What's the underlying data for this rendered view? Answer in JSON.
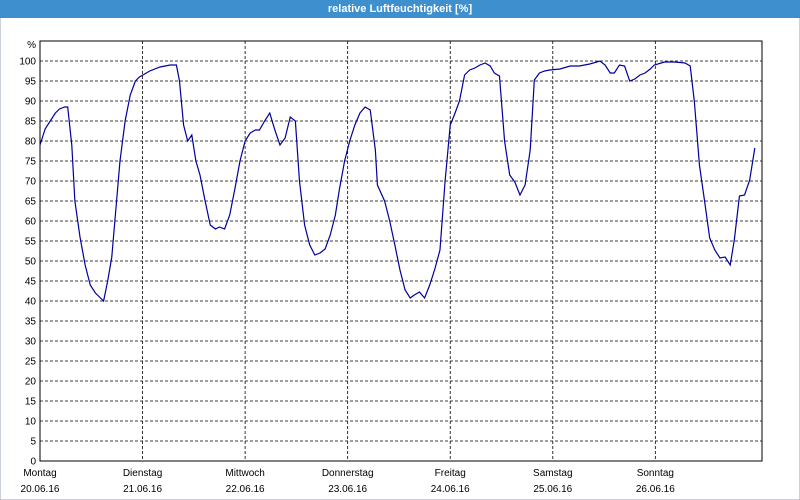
{
  "chart_data": {
    "type": "line",
    "title": "relative Luftfeuchtigkeit [%]",
    "y_unit": "%",
    "color": "#0000a0",
    "grid": true,
    "ylim": [
      0,
      105
    ],
    "yticks": [
      0,
      5,
      10,
      15,
      20,
      25,
      30,
      35,
      40,
      45,
      50,
      55,
      60,
      65,
      70,
      75,
      80,
      85,
      90,
      95,
      100
    ],
    "xlim": [
      0,
      7.04
    ],
    "xticks": [
      {
        "value": 0,
        "label": "Montag",
        "date": "20.06.16"
      },
      {
        "value": 1,
        "label": "Dienstag",
        "date": "21.06.16"
      },
      {
        "value": 2,
        "label": "Mittwoch",
        "date": "22.06.16"
      },
      {
        "value": 3,
        "label": "Donnerstag",
        "date": "23.06.16"
      },
      {
        "value": 4,
        "label": "Freitag",
        "date": "24.06.16"
      },
      {
        "value": 5,
        "label": "Samstag",
        "date": "25.06.16"
      },
      {
        "value": 6,
        "label": "Sonntag",
        "date": "26.06.16"
      }
    ],
    "x": [
      0,
      0.05,
      0.1,
      0.15,
      0.19,
      0.24,
      0.27,
      0.31,
      0.34,
      0.39,
      0.44,
      0.49,
      0.54,
      0.58,
      0.62,
      0.66,
      0.7,
      0.74,
      0.78,
      0.83,
      0.88,
      0.93,
      0.97,
      1.07,
      1.17,
      1.27,
      1.33,
      1.36,
      1.4,
      1.44,
      1.48,
      1.52,
      1.56,
      1.61,
      1.66,
      1.71,
      1.75,
      1.8,
      1.85,
      1.9,
      1.95,
      2,
      2.05,
      2.1,
      2.14,
      2.19,
      2.24,
      2.29,
      2.34,
      2.39,
      2.44,
      2.49,
      2.53,
      2.58,
      2.63,
      2.68,
      2.73,
      2.78,
      2.83,
      2.88,
      2.92,
      2.97,
      3.02,
      3.07,
      3.12,
      3.17,
      3.22,
      3.27,
      3.29,
      3.36,
      3.41,
      3.46,
      3.51,
      3.56,
      3.61,
      3.65,
      3.7,
      3.75,
      3.8,
      3.85,
      3.9,
      3.95,
      4,
      4.04,
      4.09,
      4.14,
      4.19,
      4.24,
      4.29,
      4.34,
      4.39,
      4.43,
      4.48,
      4.53,
      4.58,
      4.63,
      4.68,
      4.73,
      4.78,
      4.82,
      4.87,
      4.92,
      4.97,
      5.07,
      5.17,
      5.26,
      5.36,
      5.46,
      5.51,
      5.56,
      5.6,
      5.65,
      5.7,
      5.75,
      5.8,
      5.85,
      5.9,
      5.95,
      5.99,
      6.09,
      6.19,
      6.29,
      6.34,
      6.38,
      6.43,
      6.48,
      6.53,
      6.58,
      6.63,
      6.68,
      6.73,
      6.77,
      6.82,
      6.87,
      6.92,
      6.97
    ],
    "values": [
      79,
      83,
      85,
      87,
      88,
      88.5,
      88.5,
      79,
      65,
      56,
      49,
      44,
      42,
      41,
      40,
      45,
      51,
      63,
      75,
      85,
      91.5,
      95,
      96,
      97.5,
      98.5,
      99,
      99,
      95,
      84,
      80,
      81.5,
      75,
      71.5,
      65,
      59,
      58,
      58.5,
      58,
      61.5,
      68,
      75,
      80,
      82,
      82.75,
      82.75,
      85,
      87,
      82.75,
      79,
      80.75,
      86,
      85,
      70,
      59,
      54,
      51.5,
      52,
      53,
      56.5,
      61.5,
      68,
      75,
      80,
      84,
      87,
      88.5,
      87.75,
      77.75,
      69,
      65,
      60,
      54,
      47.75,
      42.75,
      40.75,
      41.5,
      42.25,
      40.75,
      44,
      48,
      52.75,
      70,
      84,
      86.5,
      90,
      96.5,
      97.75,
      98.25,
      99,
      99.5,
      98.75,
      97,
      96.25,
      80,
      71.5,
      69.75,
      66.5,
      69,
      77.75,
      95.25,
      97,
      97.5,
      97.75,
      98,
      98.75,
      98.75,
      99.25,
      100,
      99,
      97,
      97,
      99,
      98.75,
      95,
      95.5,
      96.5,
      97,
      98,
      99,
      99.75,
      99.75,
      99.5,
      98.75,
      90,
      74,
      65,
      55.75,
      52.75,
      50.75,
      51,
      49,
      55.25,
      66.25,
      66.5,
      70.25,
      78.25
    ]
  }
}
